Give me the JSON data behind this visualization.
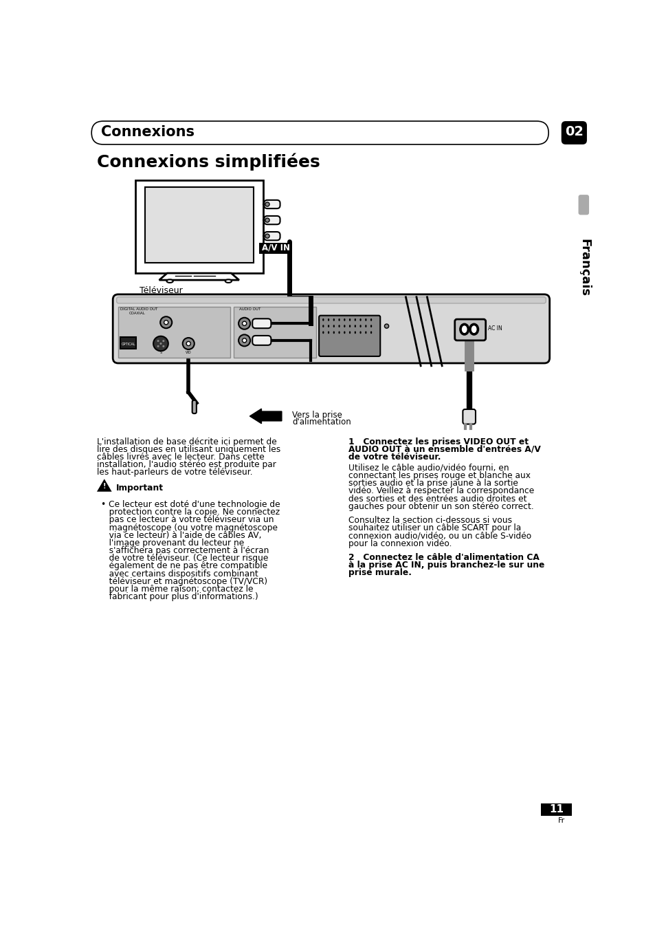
{
  "page_bg": "#ffffff",
  "header_text": "Connexions",
  "tab_text": "02",
  "sidebar_label": "Français",
  "section_title": "Connexions simplifiées",
  "televiseur_label": "Téléviseur",
  "av_in_label": "A/V IN",
  "ac_in_label": "AC IN",
  "audio_out_label": "AUDIO OUT",
  "digital_audio_out_label": "DIGITAL AUDIO OUT",
  "coaxial_label": "COAXIAL",
  "optical_label": "OPTICAL",
  "s_label": "S",
  "vid_label": "VID",
  "vers_line1": "Vers la prise",
  "vers_line2": "d'alimentation",
  "important_label": "Important",
  "left_body_lines": [
    "L'installation de base décrite ici permet de",
    "lire des disques en utilisant uniquement les",
    "câbles livrés avec le lecteur. Dans cette",
    "installation, l'audio stéréo est produite par",
    "les haut-parleurs de votre téléviseur."
  ],
  "bullet_lines": [
    "Ce lecteur est doté d'une technologie de",
    "protection contre la copie. Ne connectez",
    "pas ce lecteur à votre téléviseur via un",
    "magnétoscope (ou votre magnétoscope",
    "via ce lecteur) à l'aide de câbles AV,",
    "l'image provenant du lecteur ne",
    "s'affichera pas correctement à l'écran",
    "de votre téléviseur. (Ce lecteur risque",
    "également de ne pas être compatible",
    "avec certains dispositifs combinant",
    "téléviseur et magnétoscope (TV/VCR)",
    "pour la même raison; contactez le",
    "fabricant pour plus d'informations.)"
  ],
  "right_h1_lines": [
    "1   Connectez les prises VIDEO OUT et",
    "AUDIO OUT à un ensemble d'entrées A/V",
    "de votre téléviseur."
  ],
  "right_b1_lines": [
    "Utilisez le câble audio/vidéo fourni, en",
    "connectant les prises rouge et blanche aux",
    "sorties audio et la prise jaune à la sortie",
    "vidéo. Veillez à respecter la correspondance",
    "des sorties et des entrées audio droites et",
    "gauches pour obtenir un son stéréo correct."
  ],
  "right_b2_lines": [
    "Consultez la section ci-dessous si vous",
    "souhaitez utiliser un câble SCART pour la",
    "connexion audio/vidéo, ou un câble S-vidéo",
    "pour la connexion vidéo."
  ],
  "right_h2_lines": [
    "2   Connectez le câble d'alimentation CA",
    "à la prise AC IN, puis branchez-le sur une",
    "prise murale."
  ],
  "page_number": "11",
  "page_fr": "Fr"
}
